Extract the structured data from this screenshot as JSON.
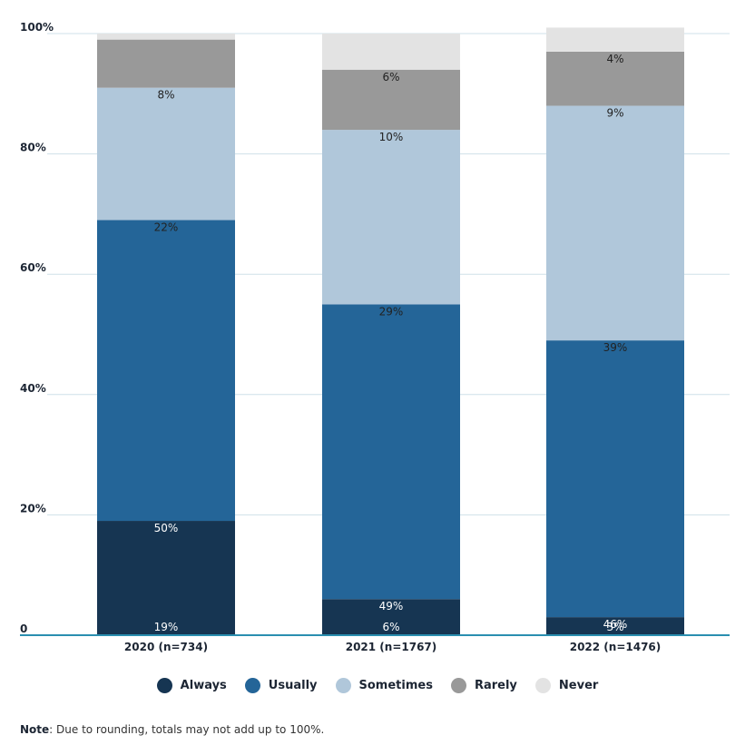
{
  "chart_data": {
    "type": "bar",
    "stacked": true,
    "categories": [
      "2020 (n=734)",
      "2021 (n=1767)",
      "2022 (n=1476)"
    ],
    "series": [
      {
        "name": "Always",
        "color": "#163552",
        "values": [
          19,
          6,
          3
        ],
        "labels": [
          "19%",
          "6%",
          "3%"
        ],
        "label_color": "#ffffff"
      },
      {
        "name": "Usually",
        "color": "#246598",
        "values": [
          50,
          49,
          46
        ],
        "labels": [
          "50%",
          "49%",
          "46%"
        ],
        "label_color": "#ffffff"
      },
      {
        "name": "Sometimes",
        "color": "#b0c7da",
        "values": [
          22,
          29,
          39
        ],
        "labels": [
          "22%",
          "29%",
          "39%"
        ],
        "label_color": "#222222"
      },
      {
        "name": "Rarely",
        "color": "#999999",
        "values": [
          8,
          10,
          9
        ],
        "labels": [
          "8%",
          "10%",
          "9%"
        ],
        "label_color": "#222222"
      },
      {
        "name": "Never",
        "color": "#e3e3e3",
        "values": [
          1,
          6,
          4
        ],
        "labels": [
          "",
          "6%",
          "4%"
        ],
        "label_color": "#222222"
      }
    ],
    "yticks": [
      0,
      20,
      40,
      60,
      80,
      100
    ],
    "ytick_labels": [
      "0",
      "20%",
      "40%",
      "60%",
      "80%",
      "100%"
    ],
    "ylim": [
      0,
      100
    ],
    "grid": true,
    "legend": "bottom"
  },
  "note": {
    "label": "Note",
    "text": ": Due to rounding, totals may not add up to 100%."
  }
}
